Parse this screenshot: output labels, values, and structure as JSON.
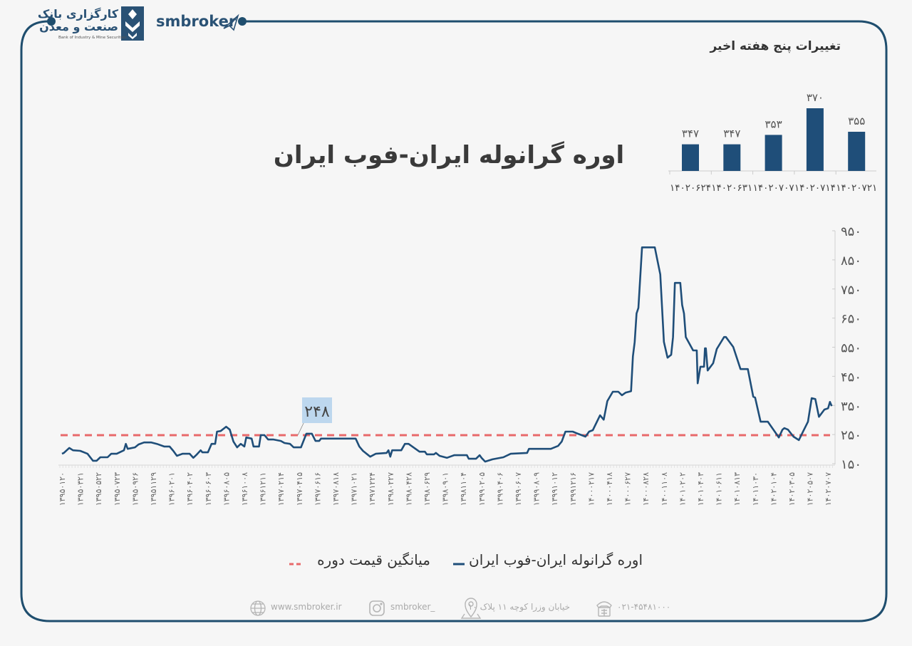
{
  "header": {
    "brand": "smbroker",
    "logo_line1": "کارگزاری بانک",
    "logo_line2": "صنعت و معدن",
    "logo_subtitle": "Bank of Industry & Mine Securities"
  },
  "colors": {
    "frame": "#1f4e6e",
    "series": "#1f4e79",
    "average": "#e8696b",
    "bar": "#1f4e79",
    "avg_label_bg": "#bdd7ee"
  },
  "chart_data": [
    {
      "type": "line",
      "title": "اوره گرانوله ایران-فوب ایران",
      "ylim": [
        150,
        950
      ],
      "yticks": [
        "۱۵۰",
        "۲۵۰",
        "۳۵۰",
        "۴۵۰",
        "۵۵۰",
        "۶۵۰",
        "۷۵۰",
        "۸۵۰",
        "۹۵۰"
      ],
      "ytick_values": [
        150,
        250,
        350,
        450,
        550,
        650,
        750,
        850,
        950
      ],
      "y_axis_side": "right",
      "grid": false,
      "legend_placement": "bottom",
      "categories": [
        "۱۳۹۵۰۱۲۰",
        "۱۳۹۵۰۳۲۱",
        "۱۳۹۵۰۵۲۲",
        "۱۳۹۵۰۷۲۳",
        "۱۳۹۵۰۹۲۶",
        "۱۳۹۵۱۱۲۹",
        "۱۳۹۶۰۲۰۱",
        "۱۳۹۶۰۴۰۲",
        "۱۳۹۶۰۶۰۳",
        "۱۳۹۶۰۸۰۵",
        "۱۳۹۶۱۰۰۸",
        "۱۳۹۶۱۲۱۱",
        "۱۳۹۷۰۲۱۴",
        "۱۳۹۷۰۴۱۵",
        "۱۳۹۷۰۶۱۶",
        "۱۳۹۷۰۸۱۸",
        "۱۳۹۷۱۰۲۱",
        "۱۳۹۷۱۲۲۴",
        "۱۳۹۸۰۲۲۷",
        "۱۳۹۸۰۴۲۸",
        "۱۳۹۸۰۶۲۹",
        "۱۳۹۸۰۹۰۱",
        "۱۳۹۸۱۱۰۴",
        "۱۳۹۹۰۲۰۵",
        "۱۳۹۹۰۴۰۶",
        "۱۳۹۹۰۶۰۷",
        "۱۳۹۹۰۸۰۹",
        "۱۳۹۹۱۰۱۲",
        "۱۳۹۹۱۲۱۶",
        "۱۴۰۰۰۲۱۷",
        "۱۴۰۰۰۴۱۸",
        "۱۴۰۰۰۶۲۷",
        "۱۴۰۰۰۸۲۸",
        "۱۴۰۰۱۱۰۸",
        "۱۴۰۱۰۲۰۲",
        "۱۴۰۱۰۴۰۳",
        "۱۴۰۱۰۶۱۱",
        "۱۴۰۱۰۸۱۳",
        "۱۴۰۱۱۰۳۰",
        "۱۴۰۲۰۱۰۴",
        "۱۴۰۲۰۳۰۵",
        "۱۴۰۲۰۵۰۷",
        "۱۴۰۲۰۷۰۷"
      ],
      "series": [
        {
          "name": "اوره گرانوله ایران-فوب ایران",
          "points_category_index_value": [
            [
              0,
              184
            ],
            [
              0.1,
              187
            ],
            [
              0.4,
              204
            ],
            [
              0.6,
              196
            ],
            [
              1.0,
              194
            ],
            [
              1.4,
              184
            ],
            [
              1.7,
              160
            ],
            [
              1.9,
              160
            ],
            [
              2.1,
              172
            ],
            [
              2.5,
              172
            ],
            [
              2.7,
              184
            ],
            [
              3.0,
              184
            ],
            [
              3.4,
              196
            ],
            [
              3.5,
              218
            ],
            [
              3.6,
              201
            ],
            [
              4.0,
              206
            ],
            [
              4.2,
              216
            ],
            [
              4.5,
              223
            ],
            [
              4.9,
              223
            ],
            [
              5.2,
              218
            ],
            [
              5.6,
              209
            ],
            [
              5.9,
              209
            ],
            [
              6.1,
              194
            ],
            [
              6.3,
              177
            ],
            [
              6.6,
              184
            ],
            [
              7.0,
              184
            ],
            [
              7.2,
              170
            ],
            [
              7.4,
              182
            ],
            [
              7.6,
              196
            ],
            [
              7.7,
              189
            ],
            [
              8.0,
              189
            ],
            [
              8.2,
              218
            ],
            [
              8.4,
              218
            ],
            [
              8.5,
              260
            ],
            [
              8.7,
              262
            ],
            [
              9.0,
              277
            ],
            [
              9.2,
              267
            ],
            [
              9.4,
              226
            ],
            [
              9.6,
              206
            ],
            [
              9.8,
              218
            ],
            [
              10.0,
              209
            ],
            [
              10.1,
              240
            ],
            [
              10.4,
              236
            ],
            [
              10.5,
              209
            ],
            [
              10.8,
              209
            ],
            [
              10.9,
              248
            ],
            [
              11.1,
              248
            ],
            [
              11.3,
              233
            ],
            [
              11.6,
              233
            ],
            [
              12.0,
              228
            ],
            [
              12.2,
              221
            ],
            [
              12.5,
              218
            ],
            [
              12.7,
              206
            ],
            [
              13.1,
              206
            ],
            [
              13.4,
              253
            ],
            [
              13.7,
              253
            ],
            [
              13.9,
              228
            ],
            [
              14.1,
              228
            ],
            [
              14.2,
              236
            ],
            [
              15.4,
              236
            ],
            [
              16.1,
              236
            ],
            [
              16.3,
              209
            ],
            [
              16.5,
              194
            ],
            [
              16.9,
              174
            ],
            [
              17.2,
              184
            ],
            [
              17.8,
              187
            ],
            [
              17.9,
              196
            ],
            [
              18.0,
              174
            ],
            [
              18.1,
              196
            ],
            [
              18.6,
              196
            ],
            [
              18.8,
              218
            ],
            [
              19.0,
              218
            ],
            [
              19.6,
              191
            ],
            [
              19.9,
              191
            ],
            [
              20.0,
              182
            ],
            [
              20.4,
              182
            ],
            [
              20.5,
              187
            ],
            [
              20.7,
              177
            ],
            [
              21.1,
              170
            ],
            [
              21.5,
              179
            ],
            [
              22.2,
              179
            ],
            [
              22.3,
              167
            ],
            [
              22.7,
              167
            ],
            [
              22.9,
              179
            ],
            [
              23.0,
              170
            ],
            [
              23.2,
              157
            ],
            [
              23.6,
              165
            ],
            [
              24.2,
              172
            ],
            [
              24.6,
              184
            ],
            [
              25.5,
              187
            ],
            [
              25.6,
              201
            ],
            [
              26.8,
              201
            ],
            [
              27.2,
              211
            ],
            [
              27.4,
              226
            ],
            [
              27.6,
              260
            ],
            [
              28.0,
              260
            ],
            [
              28.2,
              255
            ],
            [
              28.7,
              243
            ],
            [
              28.9,
              260
            ],
            [
              29.1,
              265
            ],
            [
              29.5,
              316
            ],
            [
              29.7,
              301
            ],
            [
              29.9,
              365
            ],
            [
              30.2,
              397
            ],
            [
              30.5,
              397
            ],
            [
              30.7,
              385
            ],
            [
              30.9,
              394
            ],
            [
              31.2,
              399
            ],
            [
              31.3,
              519
            ],
            [
              31.4,
              568
            ],
            [
              31.5,
              666
            ],
            [
              31.6,
              685
            ],
            [
              31.8,
              893
            ],
            [
              32.5,
              893
            ],
            [
              32.8,
              800
            ],
            [
              33.0,
              568
            ],
            [
              33.2,
              514
            ],
            [
              33.4,
              524
            ],
            [
              33.5,
              585
            ],
            [
              33.6,
              771
            ],
            [
              33.9,
              771
            ],
            [
              34.0,
              695
            ],
            [
              34.1,
              666
            ],
            [
              34.2,
              585
            ],
            [
              34.6,
              539
            ],
            [
              34.8,
              539
            ],
            [
              34.85,
              426
            ],
            [
              35.0,
              483
            ],
            [
              35.2,
              483
            ],
            [
              35.25,
              546
            ],
            [
              35.3,
              546
            ],
            [
              35.4,
              470
            ],
            [
              35.7,
              495
            ],
            [
              35.9,
              544
            ],
            [
              36.3,
              585
            ],
            [
              36.4,
              585
            ],
            [
              36.8,
              551
            ],
            [
              37.2,
              475
            ],
            [
              37.6,
              475
            ],
            [
              37.9,
              380
            ],
            [
              38.0,
              377
            ],
            [
              38.3,
              294
            ],
            [
              38.7,
              294
            ],
            [
              39.1,
              258
            ],
            [
              39.3,
              240
            ],
            [
              39.5,
              267
            ],
            [
              39.6,
              272
            ],
            [
              39.8,
              267
            ],
            [
              40.1,
              243
            ],
            [
              40.4,
              231
            ],
            [
              40.6,
              257
            ],
            [
              40.9,
              294
            ],
            [
              41.1,
              375
            ],
            [
              41.3,
              372
            ],
            [
              41.5,
              311
            ],
            [
              41.8,
              336
            ],
            [
              42.0,
              340
            ],
            [
              42.1,
              362
            ],
            [
              42.2,
              348
            ]
          ]
        },
        {
          "name": "میانگین قیمت دوره",
          "constant_value": 248,
          "style": "dashed",
          "label": "۲۴۸"
        }
      ]
    },
    {
      "type": "bar",
      "title": "تغییرات پنج هفته اخیر",
      "categories": [
        "۱۴۰۲۰۶۲۴",
        "۱۴۰۲۰۶۳۱",
        "۱۴۰۲۰۷۰۷",
        "۱۴۰۲۰۷۱۴",
        "۱۴۰۲۰۷۲۱"
      ],
      "values": [
        347,
        347,
        353,
        370,
        355
      ],
      "value_labels": [
        "۳۴۷",
        "۳۴۷",
        "۳۵۳",
        "۳۷۰",
        "۳۵۵"
      ],
      "ylim": [
        330,
        375
      ]
    }
  ],
  "legend": {
    "series_label": "اوره گرانوله ایران-فوب ایران",
    "average_label": "میانگین قیمت دوره"
  },
  "footer": {
    "website": "www.smbroker.ir",
    "instagram": "smbroker_",
    "address": "خیابان وزرا کوچه ۱۱ پلاک ۱۰",
    "phone": "۰۲۱-۴۵۴۸۱۰۰۰",
    "icons": [
      "globe-icon",
      "instagram-icon",
      "location-pin-icon",
      "phone-icon"
    ]
  }
}
